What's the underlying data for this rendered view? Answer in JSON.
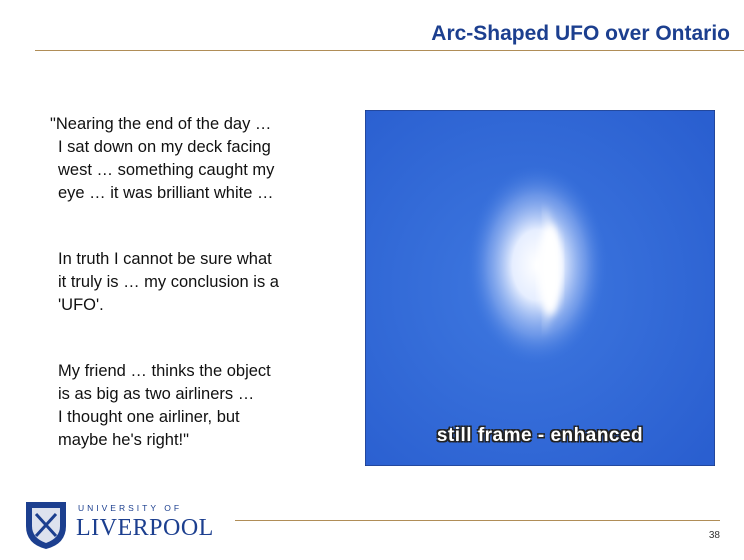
{
  "header": {
    "title": "Arc-Shaped UFO over Ontario"
  },
  "quote": {
    "paragraphs": [
      [
        "\"Nearing the end of the day …",
        "I sat down on my deck facing",
        "west … something caught my",
        "eye … it was brilliant white …"
      ],
      [
        "In truth I cannot be sure what",
        "it truly is … my conclusion is a",
        "'UFO'."
      ],
      [
        "My friend … thinks the object",
        "is as big as two airliners …",
        "I thought one airliner, but",
        "maybe he's right!\""
      ]
    ]
  },
  "image": {
    "caption": "still frame - enhanced"
  },
  "footer": {
    "logo": {
      "line1": "UNIVERSITY OF",
      "line2": "LIVERPOOL"
    },
    "page_number": "38"
  }
}
